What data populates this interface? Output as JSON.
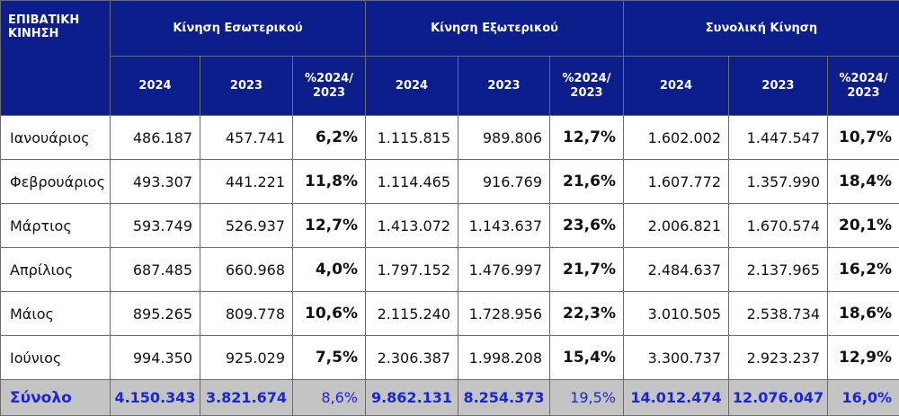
{
  "header": {
    "corner_label": "ΕΠΙΒΑΤΙΚΗ ΚΙΝΗΣΗ",
    "groups": [
      "Κίνηση Εσωτερικού",
      "Κίνηση Εξωτερικού",
      "Συνολική Κίνηση"
    ],
    "subheaders": [
      "2024",
      "2023",
      "%2024/ 2023"
    ]
  },
  "rows": [
    {
      "month": "Ιανουάριος",
      "values": [
        "486.187",
        "457.741",
        "6,2%",
        "1.115.815",
        "989.806",
        "12,7%",
        "1.602.002",
        "1.447.547",
        "10,7%"
      ]
    },
    {
      "month": "Φεβρουάριος",
      "values": [
        "493.307",
        "441.221",
        "11,8%",
        "1.114.465",
        "916.769",
        "21,6%",
        "1.607.772",
        "1.357.990",
        "18,4%"
      ]
    },
    {
      "month": "Μάρτιος",
      "values": [
        "593.749",
        "526.937",
        "12,7%",
        "1.413.072",
        "1.143.637",
        "23,6%",
        "2.006.821",
        "1.670.574",
        "20,1%"
      ]
    },
    {
      "month": "Απρίλιος",
      "values": [
        "687.485",
        "660.968",
        "4,0%",
        "1.797.152",
        "1.476.997",
        "21,7%",
        "2.484.637",
        "2.137.965",
        "16,2%"
      ]
    },
    {
      "month": "Μάιος",
      "values": [
        "895.265",
        "809.778",
        "10,6%",
        "2.115.240",
        "1.728.956",
        "22,3%",
        "3.010.505",
        "2.538.734",
        "18,6%"
      ]
    },
    {
      "month": "Ιούνιος",
      "values": [
        "994.350",
        "925.029",
        "7,5%",
        "2.306.387",
        "1.998.208",
        "15,4%",
        "3.300.737",
        "2.923.237",
        "12,9%"
      ]
    }
  ],
  "total": {
    "label": "Σύνολο",
    "values": [
      "4.150.343",
      "3.821.674",
      "8,6%",
      "9.862.131",
      "8.254.373",
      "19,5%",
      "14.012.474",
      "12.076.047",
      "16,0%"
    ]
  }
}
